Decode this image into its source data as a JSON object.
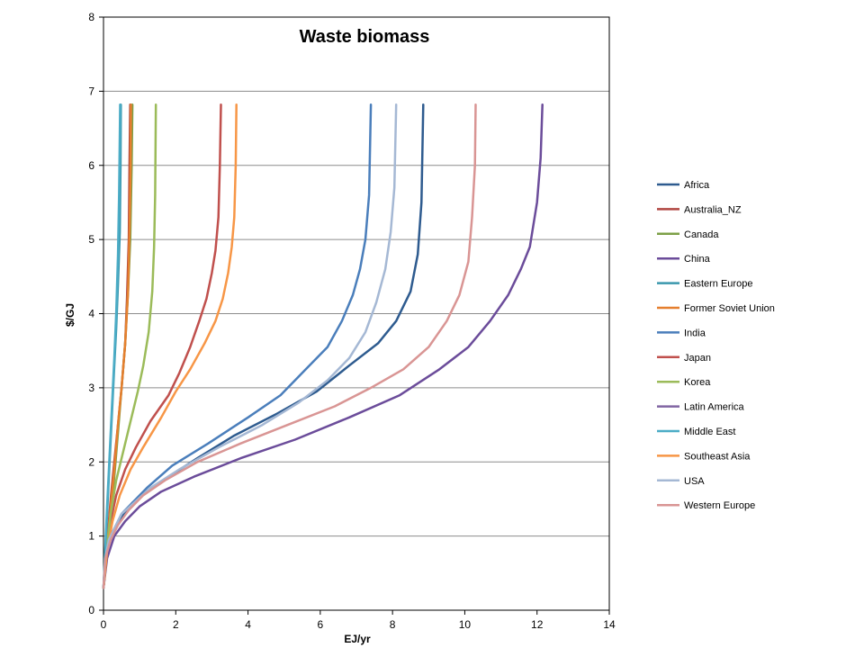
{
  "chart_data": {
    "type": "line",
    "title": "Waste biomass",
    "xlabel": "EJ/yr",
    "ylabel": "$/GJ",
    "xlim": [
      0,
      14
    ],
    "ylim": [
      0,
      8
    ],
    "xticks": [
      0,
      2,
      4,
      6,
      8,
      10,
      12,
      14
    ],
    "yticks": [
      0,
      1,
      2,
      3,
      4,
      5,
      6,
      7,
      8
    ],
    "grid": "horizontal",
    "legend_position": "right",
    "series": [
      {
        "name": "Africa",
        "color": "#2e5b8f",
        "x": [
          0,
          0.05,
          0.15,
          0.3,
          0.5,
          0.8,
          1.2,
          1.8,
          2.6,
          3.6,
          4.8,
          5.9,
          6.8,
          7.6,
          8.1,
          8.5,
          8.7,
          8.8,
          8.85
        ],
        "y": [
          0.3,
          0.7,
          0.95,
          1.1,
          1.25,
          1.45,
          1.6,
          1.8,
          2.05,
          2.35,
          2.65,
          2.95,
          3.3,
          3.6,
          3.9,
          4.3,
          4.8,
          5.5,
          6.82
        ]
      },
      {
        "name": "Australia_NZ",
        "color": "#b04641",
        "x": [
          0,
          0.1,
          0.2,
          0.3,
          0.4,
          0.5,
          0.6,
          0.65,
          0.7,
          0.72,
          0.74
        ],
        "y": [
          0.3,
          0.9,
          1.5,
          2.0,
          2.5,
          3.0,
          3.6,
          4.2,
          5.0,
          6.0,
          6.82
        ]
      },
      {
        "name": "Canada",
        "color": "#7da047",
        "x": [
          0,
          0.1,
          0.2,
          0.3,
          0.4,
          0.5,
          0.6,
          0.68,
          0.74,
          0.78,
          0.8
        ],
        "y": [
          0.3,
          0.8,
          1.3,
          1.8,
          2.4,
          3.0,
          3.6,
          4.3,
          5.0,
          6.0,
          6.82
        ]
      },
      {
        "name": "China",
        "color": "#6b4c9a",
        "x": [
          0,
          0.1,
          0.3,
          0.6,
          1.0,
          1.6,
          2.5,
          3.8,
          5.3,
          6.8,
          8.2,
          9.3,
          10.1,
          10.7,
          11.2,
          11.55,
          11.8,
          12.0,
          12.1,
          12.15
        ],
        "y": [
          0.3,
          0.7,
          1.0,
          1.2,
          1.4,
          1.6,
          1.8,
          2.05,
          2.3,
          2.6,
          2.9,
          3.25,
          3.55,
          3.9,
          4.25,
          4.6,
          4.9,
          5.5,
          6.1,
          6.82
        ]
      },
      {
        "name": "Eastern Europe",
        "color": "#3a97ad",
        "x": [
          0,
          0.05,
          0.1,
          0.15,
          0.2,
          0.25,
          0.3,
          0.35,
          0.4,
          0.45,
          0.47,
          0.48
        ],
        "y": [
          0.3,
          0.8,
          1.3,
          1.8,
          2.3,
          2.8,
          3.3,
          3.8,
          4.4,
          5.1,
          6.0,
          6.82
        ]
      },
      {
        "name": "Former Soviet Union",
        "color": "#e57f2e",
        "x": [
          0,
          0.1,
          0.2,
          0.3,
          0.4,
          0.5,
          0.6,
          0.68,
          0.72,
          0.75,
          0.76
        ],
        "y": [
          0.3,
          0.85,
          1.4,
          1.9,
          2.5,
          3.0,
          3.6,
          4.3,
          5.1,
          6.0,
          6.82
        ]
      },
      {
        "name": "India",
        "color": "#4a7ebb",
        "x": [
          0,
          0.05,
          0.15,
          0.3,
          0.5,
          0.8,
          1.2,
          1.9,
          2.9,
          4.0,
          4.9,
          5.6,
          6.2,
          6.6,
          6.9,
          7.1,
          7.25,
          7.35,
          7.4
        ],
        "y": [
          0.3,
          0.7,
          0.95,
          1.1,
          1.3,
          1.45,
          1.65,
          1.95,
          2.25,
          2.6,
          2.9,
          3.25,
          3.55,
          3.9,
          4.25,
          4.6,
          5.0,
          5.6,
          6.82
        ]
      },
      {
        "name": "Japan",
        "color": "#c0504d",
        "x": [
          0,
          0.1,
          0.2,
          0.35,
          0.6,
          0.9,
          1.3,
          1.8,
          2.1,
          2.4,
          2.65,
          2.85,
          3.0,
          3.1,
          3.18,
          3.22,
          3.25
        ],
        "y": [
          0.3,
          0.8,
          1.2,
          1.55,
          1.9,
          2.2,
          2.55,
          2.9,
          3.2,
          3.55,
          3.9,
          4.2,
          4.55,
          4.85,
          5.3,
          6.0,
          6.82
        ]
      },
      {
        "name": "Korea",
        "color": "#9bbb59",
        "x": [
          0,
          0.1,
          0.2,
          0.35,
          0.55,
          0.75,
          0.95,
          1.1,
          1.25,
          1.35,
          1.4,
          1.43,
          1.45
        ],
        "y": [
          0.3,
          0.85,
          1.3,
          1.75,
          2.15,
          2.55,
          2.95,
          3.3,
          3.75,
          4.3,
          4.9,
          5.6,
          6.82
        ]
      },
      {
        "name": "Latin America",
        "color": "#8064a2",
        "x": [
          12.15
        ],
        "y": [
          6.82
        ]
      },
      {
        "name": "Middle East",
        "color": "#4bacc6",
        "x": [
          0,
          0.05,
          0.1,
          0.15,
          0.2,
          0.25,
          0.3,
          0.35,
          0.4,
          0.43,
          0.46
        ],
        "y": [
          0.3,
          0.85,
          1.4,
          1.9,
          2.4,
          2.9,
          3.4,
          4.0,
          4.8,
          5.6,
          6.82
        ]
      },
      {
        "name": "Southeast Asia",
        "color": "#f79646",
        "x": [
          0,
          0.1,
          0.25,
          0.45,
          0.75,
          1.1,
          1.6,
          2.0,
          2.4,
          2.8,
          3.1,
          3.3,
          3.45,
          3.55,
          3.62,
          3.66,
          3.68
        ],
        "y": [
          0.3,
          0.8,
          1.2,
          1.55,
          1.9,
          2.2,
          2.6,
          2.95,
          3.25,
          3.6,
          3.9,
          4.2,
          4.55,
          4.9,
          5.3,
          6.0,
          6.82
        ]
      },
      {
        "name": "USA",
        "color": "#a5b8d4",
        "x": [
          0,
          0.05,
          0.15,
          0.3,
          0.5,
          0.85,
          1.3,
          2.1,
          3.2,
          4.4,
          5.4,
          6.2,
          6.8,
          7.25,
          7.55,
          7.8,
          7.95,
          8.05,
          8.1
        ],
        "y": [
          0.3,
          0.7,
          0.95,
          1.1,
          1.3,
          1.45,
          1.65,
          1.9,
          2.2,
          2.5,
          2.8,
          3.1,
          3.4,
          3.75,
          4.15,
          4.6,
          5.1,
          5.7,
          6.82
        ]
      },
      {
        "name": "Western Europe",
        "color": "#d99594",
        "x": [
          0,
          0.05,
          0.2,
          0.4,
          0.7,
          1.1,
          1.7,
          2.6,
          3.8,
          5.1,
          6.4,
          7.4,
          8.3,
          9.0,
          9.5,
          9.85,
          10.1,
          10.2,
          10.28,
          10.3
        ],
        "y": [
          0.3,
          0.7,
          0.95,
          1.15,
          1.35,
          1.55,
          1.75,
          2.0,
          2.25,
          2.5,
          2.75,
          3.0,
          3.25,
          3.55,
          3.9,
          4.25,
          4.7,
          5.3,
          6.0,
          6.82
        ]
      }
    ]
  }
}
